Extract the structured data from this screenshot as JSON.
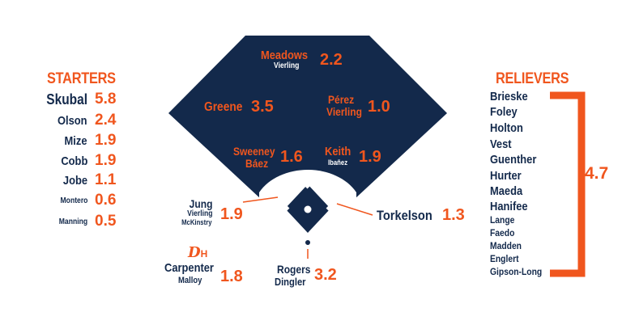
{
  "colors": {
    "navy": "#13294B",
    "orange": "#F0561E",
    "white": "#FFFFFF"
  },
  "starters": {
    "title": "STARTERS",
    "players": [
      {
        "name": "Skubal",
        "war": "5.8"
      },
      {
        "name": "Olson",
        "war": "2.4"
      },
      {
        "name": "Mize",
        "war": "1.9"
      },
      {
        "name": "Cobb",
        "war": "1.9"
      },
      {
        "name": "Jobe",
        "war": "1.1"
      },
      {
        "name": "Montero",
        "war": "0.6"
      },
      {
        "name": "Manning",
        "war": "0.5"
      }
    ]
  },
  "relievers": {
    "title": "RELIEVERS",
    "players": [
      "Brieske",
      "Foley",
      "Holton",
      "Vest",
      "Guenther",
      "Hurter",
      "Maeda",
      "Hanifee",
      "Lange",
      "Faedo",
      "Madden",
      "Englert",
      "Gipson-Long"
    ],
    "war": "4.7"
  },
  "field": {
    "cf": {
      "name": "Meadows",
      "sub": "Vierling",
      "war": "2.2"
    },
    "lf": {
      "name": "Greene",
      "war": "3.5"
    },
    "rf": {
      "name": "Pérez",
      "sub": "Vierling",
      "war": "1.0"
    },
    "ss": {
      "name": "Sweeney",
      "sub": "Báez",
      "war": "1.6"
    },
    "2b": {
      "name": "Keith",
      "sub": "Ibañez",
      "war": "1.9"
    },
    "3b": {
      "name": "Jung",
      "sub1": "Vierling",
      "sub2": "McKinstry",
      "war": "1.9"
    },
    "1b": {
      "name": "Torkelson",
      "war": "1.3"
    },
    "c": {
      "name": "Rogers",
      "sub": "Dingler",
      "war": "3.2"
    }
  },
  "dh": {
    "logo": "D",
    "logo_label": "H",
    "name": "Carpenter",
    "sub": "Malloy",
    "war": "1.8"
  }
}
